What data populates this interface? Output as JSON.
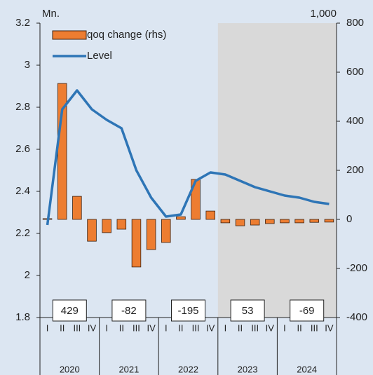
{
  "chart_data": {
    "type": "combo",
    "y_unit_label": "Mn.",
    "y2_unit_label": "1,000",
    "categories": [
      "I",
      "II",
      "III",
      "IV",
      "I",
      "II",
      "III",
      "IV",
      "I",
      "II",
      "III",
      "IV",
      "I",
      "II",
      "III",
      "IV",
      "I",
      "II",
      "III",
      "IV"
    ],
    "years": [
      "2020",
      "2021",
      "2022",
      "2023",
      "2024"
    ],
    "annual_totals": [
      429,
      -82,
      -195,
      53,
      -69
    ],
    "shade_start_year": "2023",
    "background": "#dce6f2",
    "shade_color": "#d9d9d9",
    "series": [
      {
        "name": "qoq change (rhs)",
        "type": "bar",
        "axis": "y2",
        "color": "#ed7d31",
        "values": [
          3,
          554,
          94,
          -89,
          -54,
          -40,
          -194,
          -123,
          -94,
          11,
          163,
          34,
          -14,
          -26,
          -23,
          -17,
          -14,
          -14,
          -12,
          -11
        ]
      },
      {
        "name": "Level",
        "type": "line",
        "color": "#2e75b6",
        "values": [
          2.24,
          2.79,
          2.88,
          2.79,
          2.74,
          2.7,
          2.5,
          2.37,
          2.28,
          2.29,
          2.45,
          2.49,
          2.48,
          2.45,
          2.42,
          2.4,
          2.38,
          2.37,
          2.35,
          2.34
        ]
      }
    ],
    "ylim": [
      1.8,
      3.2
    ],
    "yticks": [
      1.8,
      2,
      2.2,
      2.4,
      2.6,
      2.8,
      3,
      3.2
    ],
    "y2lim": [
      -400,
      800
    ],
    "y2ticks": [
      -400,
      -200,
      0,
      200,
      400,
      600,
      800
    ],
    "legend": "upper left"
  }
}
